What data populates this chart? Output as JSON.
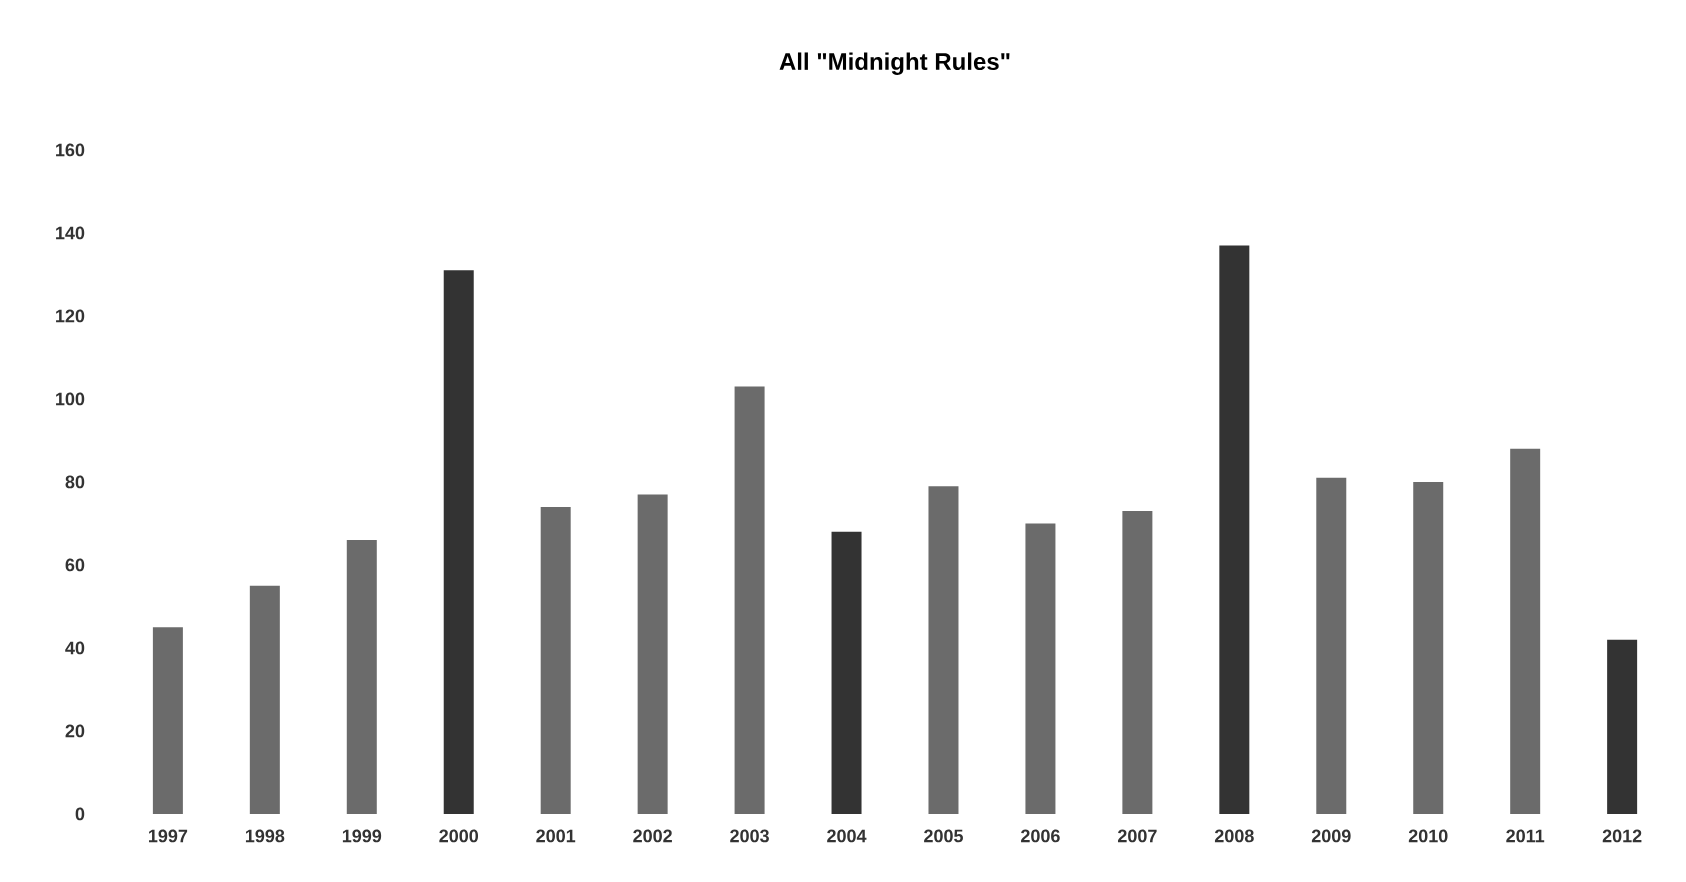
{
  "chart_data": {
    "type": "bar",
    "title": "All \"Midnight Rules\"",
    "categories": [
      "1997",
      "1998",
      "1999",
      "2000",
      "2001",
      "2002",
      "2003",
      "2004",
      "2005",
      "2006",
      "2007",
      "2008",
      "2009",
      "2010",
      "2011",
      "2012"
    ],
    "values": [
      45,
      55,
      66,
      131,
      74,
      77,
      103,
      68,
      79,
      70,
      73,
      137,
      81,
      80,
      88,
      42
    ],
    "colors": [
      "#6b6b6b",
      "#6b6b6b",
      "#6b6b6b",
      "#333333",
      "#6b6b6b",
      "#6b6b6b",
      "#6b6b6b",
      "#333333",
      "#6b6b6b",
      "#6b6b6b",
      "#6b6b6b",
      "#333333",
      "#6b6b6b",
      "#6b6b6b",
      "#6b6b6b",
      "#333333"
    ],
    "ylim": [
      0,
      160
    ],
    "yticks": [
      0,
      20,
      40,
      60,
      80,
      100,
      120,
      140,
      160
    ],
    "grid": false
  }
}
